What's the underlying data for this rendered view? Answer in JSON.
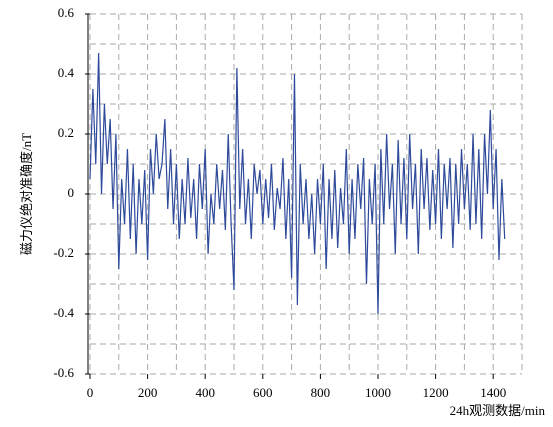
{
  "chart_data": {
    "type": "line",
    "xlabel": "24h观测数据/min",
    "ylabel": "磁力仪绝对准确度/nT",
    "xlim": [
      0,
      1500
    ],
    "ylim": [
      -0.6,
      0.6
    ],
    "xticks": [
      0,
      200,
      400,
      600,
      800,
      1000,
      1200,
      1400
    ],
    "xgrid_minor": [
      100,
      300,
      500,
      700,
      900,
      1100,
      1300,
      1500
    ],
    "yticks": [
      -0.6,
      -0.4,
      -0.2,
      0,
      0.2,
      0.4,
      0.6
    ],
    "ygrid_minor": [
      -0.5,
      -0.3,
      -0.1,
      0.1,
      0.3,
      0.5
    ],
    "grid": true,
    "x": [
      0,
      10,
      20,
      30,
      40,
      50,
      60,
      70,
      80,
      90,
      100,
      110,
      120,
      130,
      140,
      150,
      160,
      170,
      180,
      190,
      200,
      210,
      220,
      230,
      240,
      250,
      260,
      270,
      280,
      290,
      300,
      310,
      320,
      330,
      340,
      350,
      360,
      370,
      380,
      390,
      400,
      410,
      420,
      430,
      440,
      450,
      460,
      470,
      480,
      490,
      500,
      510,
      520,
      530,
      540,
      550,
      560,
      570,
      580,
      590,
      600,
      610,
      620,
      630,
      640,
      650,
      660,
      670,
      680,
      690,
      700,
      710,
      720,
      730,
      740,
      750,
      760,
      770,
      780,
      790,
      800,
      810,
      820,
      830,
      840,
      850,
      860,
      870,
      880,
      890,
      900,
      910,
      920,
      930,
      940,
      950,
      960,
      970,
      980,
      990,
      1000,
      1010,
      1020,
      1030,
      1040,
      1050,
      1060,
      1070,
      1080,
      1090,
      1100,
      1110,
      1120,
      1130,
      1140,
      1150,
      1160,
      1170,
      1180,
      1190,
      1200,
      1210,
      1220,
      1230,
      1240,
      1250,
      1260,
      1270,
      1280,
      1290,
      1300,
      1310,
      1320,
      1330,
      1340,
      1350,
      1360,
      1370,
      1380,
      1390,
      1400,
      1410,
      1420,
      1430,
      1440
    ],
    "series": [
      {
        "color": "#2e4a9a",
        "values": [
          0.05,
          0.35,
          0.1,
          0.47,
          0.0,
          0.3,
          0.1,
          0.25,
          -0.05,
          0.2,
          -0.25,
          0.05,
          -0.1,
          0.15,
          -0.15,
          0.1,
          -0.2,
          0.05,
          -0.1,
          0.08,
          -0.22,
          0.15,
          0.0,
          0.2,
          0.05,
          0.1,
          0.25,
          -0.05,
          0.15,
          -0.1,
          0.1,
          -0.15,
          0.05,
          -0.1,
          0.12,
          -0.08,
          0.05,
          -0.15,
          0.1,
          -0.05,
          0.15,
          -0.2,
          0.0,
          -0.1,
          0.1,
          -0.05,
          0.08,
          -0.12,
          0.2,
          -0.1,
          -0.32,
          0.42,
          -0.05,
          0.15,
          -0.1,
          0.05,
          -0.15,
          0.1,
          0.0,
          0.08,
          -0.1,
          0.05,
          -0.08,
          0.1,
          -0.12,
          0.02,
          -0.05,
          0.12,
          -0.15,
          0.05,
          -0.28,
          0.4,
          -0.37,
          0.1,
          -0.1,
          0.05,
          -0.15,
          0.0,
          -0.2,
          0.05,
          -0.1,
          0.1,
          -0.25,
          0.05,
          -0.15,
          0.08,
          -0.18,
          0.02,
          -0.1,
          0.15,
          -0.2,
          0.05,
          -0.15,
          0.1,
          -0.05,
          0.12,
          -0.3,
          0.05,
          -0.1,
          0.1,
          -0.4,
          0.15,
          -0.1,
          0.2,
          -0.05,
          0.1,
          -0.2,
          0.18,
          -0.1,
          0.12,
          -0.15,
          0.2,
          -0.05,
          0.1,
          -0.2,
          0.15,
          -0.05,
          0.12,
          -0.12,
          0.08,
          -0.1,
          0.15,
          -0.15,
          0.1,
          -0.05,
          0.12,
          -0.18,
          0.1,
          -0.1,
          0.15,
          -0.05,
          0.1,
          -0.12,
          0.2,
          -0.1,
          0.15,
          -0.15,
          0.2,
          0.0,
          0.28,
          -0.05,
          0.15,
          -0.22,
          0.05,
          -0.15
        ]
      }
    ]
  }
}
